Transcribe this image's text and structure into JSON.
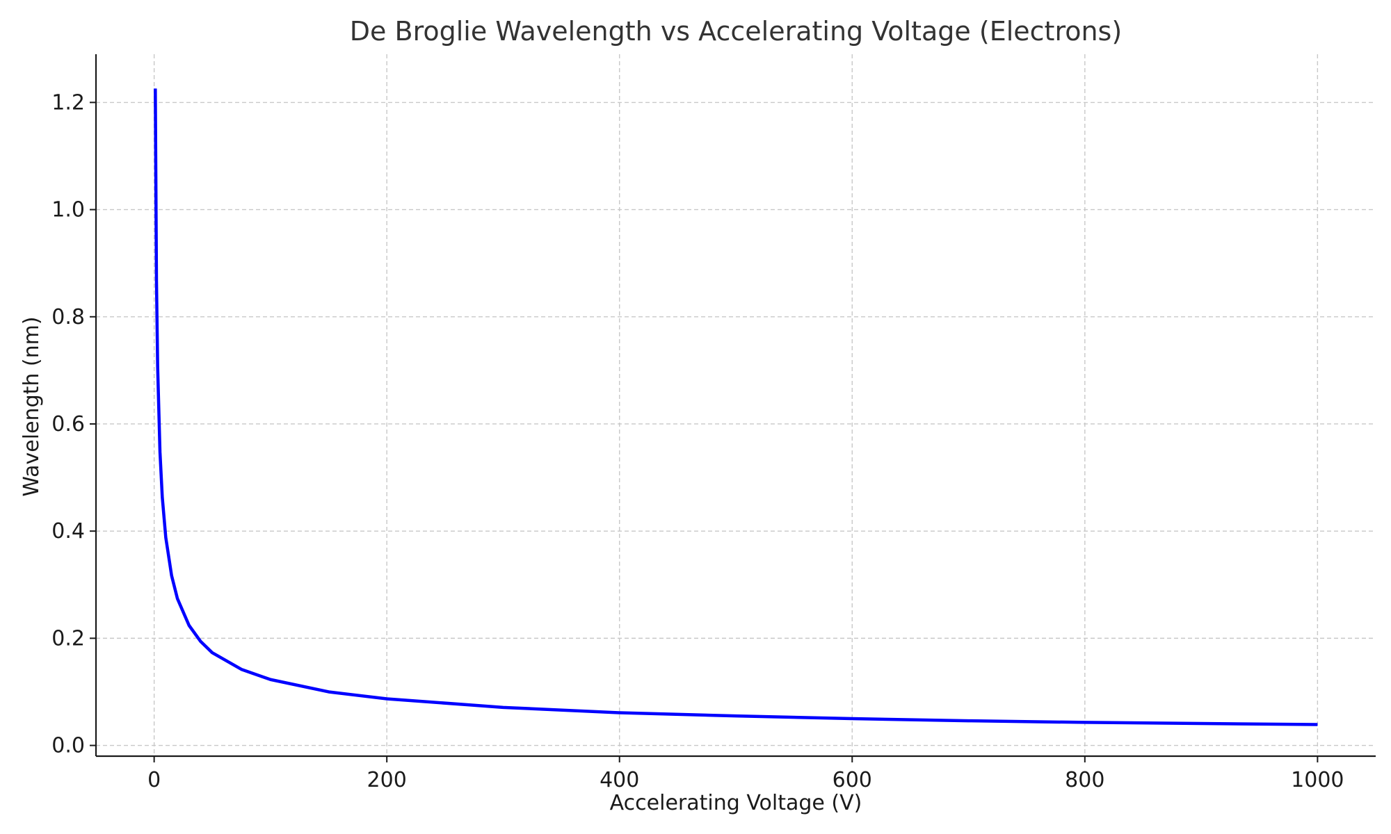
{
  "chart_data": {
    "type": "line",
    "title": "De Broglie Wavelength vs Accelerating Voltage (Electrons)",
    "xlabel": "Accelerating Voltage (V)",
    "ylabel": "Wavelength (nm)",
    "xlim": [
      -50,
      1050
    ],
    "ylim": [
      -0.02,
      1.29
    ],
    "xticks": [
      0,
      200,
      400,
      600,
      800,
      1000
    ],
    "xtick_labels": [
      "0",
      "200",
      "400",
      "600",
      "800",
      "1000"
    ],
    "yticks": [
      0.0,
      0.2,
      0.4,
      0.6,
      0.8,
      1.0,
      1.2
    ],
    "ytick_labels": [
      "0.0",
      "0.2",
      "0.4",
      "0.6",
      "0.8",
      "1.0",
      "1.2"
    ],
    "grid": true,
    "series": [
      {
        "color": "#0000ff",
        "x": [
          1,
          2,
          3,
          5,
          7,
          10,
          15,
          20,
          30,
          40,
          50,
          75,
          100,
          150,
          200,
          300,
          400,
          500,
          600,
          700,
          800,
          900,
          1000
        ],
        "y": [
          1.226,
          0.867,
          0.708,
          0.548,
          0.463,
          0.388,
          0.317,
          0.274,
          0.224,
          0.194,
          0.173,
          0.142,
          0.123,
          0.1,
          0.087,
          0.071,
          0.061,
          0.055,
          0.05,
          0.046,
          0.043,
          0.041,
          0.039
        ]
      }
    ]
  }
}
